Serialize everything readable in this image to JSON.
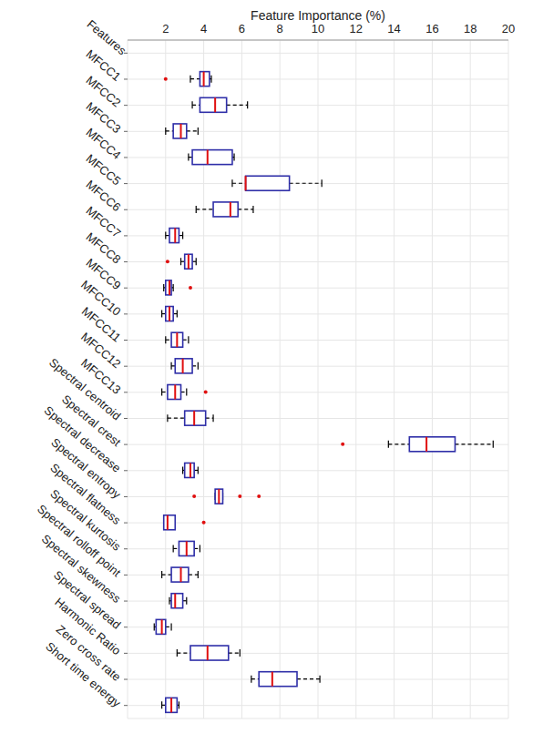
{
  "chart_data": {
    "type": "boxplot",
    "orientation": "horizontal",
    "x_label": "Feature Importance (%)",
    "y_label": "Features",
    "categories": [
      null,
      "MFCC1",
      "MFCC2",
      "MFCC3",
      "MFCC4",
      "MFCC5",
      "MFCC6",
      "MFCC7",
      "MFCC8",
      "MFCC9",
      "MFCC10",
      "MFCC11",
      "MFCC12",
      "MFCC13",
      "Spectral centroid",
      "Spectral crest",
      "Spectral decrease",
      "Spectral entropy",
      "Spectral flatness",
      "Spectral kurtosis",
      "Spectral rolloff point",
      "Spectral skewness",
      "Spectral spread",
      "Harmonic Ratio",
      "Zero cross rate",
      "Short time energy"
    ],
    "min": [
      null,
      3.3,
      3.4,
      2.0,
      3.2,
      5.5,
      3.6,
      2.0,
      2.8,
      1.9,
      1.8,
      2.0,
      2.3,
      1.8,
      2.1,
      13.7,
      2.9,
      4.6,
      1.9,
      2.4,
      1.8,
      2.2,
      1.4,
      2.6,
      6.5,
      1.8
    ],
    "q1": [
      null,
      3.8,
      3.8,
      2.4,
      3.4,
      6.2,
      4.5,
      2.2,
      3.0,
      2.0,
      2.0,
      2.3,
      2.5,
      2.1,
      3.0,
      14.8,
      3.0,
      4.6,
      1.9,
      2.7,
      2.3,
      2.3,
      1.5,
      3.3,
      6.9,
      2.0
    ],
    "median": [
      null,
      4.0,
      4.6,
      2.8,
      4.2,
      6.2,
      5.4,
      2.5,
      3.2,
      2.2,
      2.2,
      2.6,
      2.9,
      2.5,
      3.5,
      15.7,
      3.3,
      4.8,
      2.1,
      3.1,
      2.8,
      2.5,
      1.8,
      4.2,
      7.6,
      2.3
    ],
    "q3": [
      null,
      4.3,
      5.2,
      3.1,
      5.5,
      8.5,
      5.8,
      2.7,
      3.4,
      2.3,
      2.4,
      2.9,
      3.4,
      2.8,
      4.1,
      17.2,
      3.5,
      5.0,
      2.5,
      3.5,
      3.2,
      2.9,
      2.0,
      5.3,
      8.9,
      2.6
    ],
    "max": [
      null,
      4.4,
      6.3,
      3.7,
      5.6,
      10.2,
      6.6,
      2.9,
      3.6,
      2.4,
      2.6,
      3.2,
      3.7,
      3.1,
      4.5,
      19.2,
      3.7,
      5.0,
      2.5,
      3.8,
      3.7,
      3.1,
      2.3,
      5.9,
      10.1,
      2.7
    ],
    "outliers": [
      null,
      [
        2.0
      ],
      [],
      [],
      [],
      [],
      [],
      [],
      [
        2.1
      ],
      [
        3.3
      ],
      [],
      [],
      [],
      [
        4.1
      ],
      [],
      [
        11.3
      ],
      [],
      [
        3.5,
        5.9,
        6.9
      ],
      [
        4.0
      ],
      [],
      [],
      [],
      [],
      [],
      [],
      []
    ],
    "xlim": [
      0,
      20
    ],
    "xticks": [
      2,
      4,
      6,
      8,
      10,
      12,
      14,
      16,
      18,
      20
    ],
    "grid": true,
    "color": "#2f2fa8"
  }
}
